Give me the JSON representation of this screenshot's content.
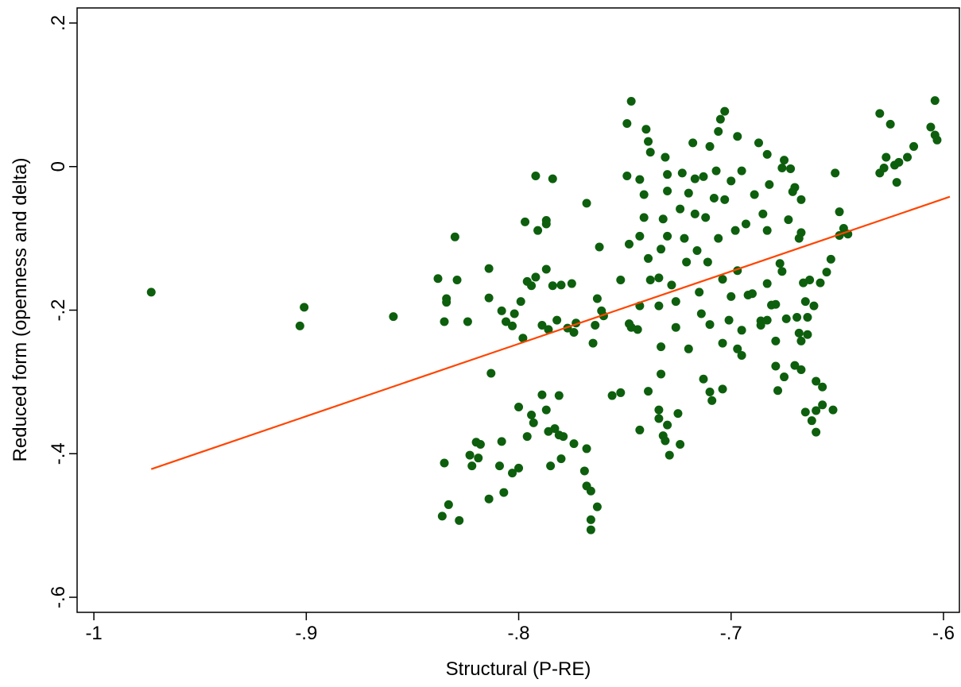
{
  "chart_data": {
    "type": "scatter",
    "x_label": "Structural (P-RE)",
    "y_label": "Reduced form (openness and delta)",
    "xlim": [
      -1.0079,
      -0.5925
    ],
    "ylim": [
      -0.621,
      0.221
    ],
    "xticks": [
      {
        "value": -1,
        "label": "-1"
      },
      {
        "value": -0.9,
        "label": "-.9"
      },
      {
        "value": -0.8,
        "label": "-.8"
      },
      {
        "value": -0.7,
        "label": "-.7"
      },
      {
        "value": -0.6,
        "label": "-.6"
      }
    ],
    "yticks": [
      {
        "value": -0.6,
        "label": "-.6"
      },
      {
        "value": -0.4,
        "label": "-.4"
      },
      {
        "value": -0.2,
        "label": "-.2"
      },
      0,
      {
        "value": 0.2,
        "label": ".2"
      }
    ],
    "grid": false,
    "series": [
      {
        "color": "#0d5f0d",
        "x": [
          -0.973,
          -0.903,
          -0.901,
          -0.859,
          -0.838,
          -0.83,
          -0.829,
          -0.834,
          -0.834,
          -0.835,
          -0.835,
          -0.836,
          -0.833,
          -0.828,
          -0.824,
          -0.814,
          -0.814,
          -0.813,
          -0.814,
          -0.82,
          -0.822,
          -0.819,
          -0.823,
          -0.818,
          -0.808,
          -0.806,
          -0.803,
          -0.802,
          -0.799,
          -0.803,
          -0.807,
          -0.808,
          -0.809,
          -0.8,
          -0.798,
          -0.8,
          -0.797,
          -0.792,
          -0.791,
          -0.787,
          -0.787,
          -0.784,
          -0.796,
          -0.794,
          -0.792,
          -0.796,
          -0.794,
          -0.793,
          -0.789,
          -0.789,
          -0.787,
          -0.787,
          -0.786,
          -0.786,
          -0.785,
          -0.784,
          -0.783,
          -0.782,
          -0.781,
          -0.781,
          -0.78,
          -0.779,
          -0.78,
          -0.777,
          -0.775,
          -0.774,
          -0.773,
          -0.774,
          -0.768,
          -0.768,
          -0.769,
          -0.768,
          -0.766,
          -0.763,
          -0.766,
          -0.766,
          -0.764,
          -0.763,
          -0.762,
          -0.761,
          -0.76,
          -0.765,
          -0.756,
          -0.752,
          -0.752,
          -0.747,
          -0.748,
          -0.748,
          -0.747,
          -0.749,
          -0.749,
          -0.744,
          -0.743,
          -0.743,
          -0.741,
          -0.743,
          -0.743,
          -0.741,
          -0.74,
          -0.739,
          -0.738,
          -0.739,
          -0.739,
          -0.738,
          -0.734,
          -0.734,
          -0.734,
          -0.734,
          -0.733,
          -0.733,
          -0.733,
          -0.732,
          -0.732,
          -0.731,
          -0.731,
          -0.73,
          -0.73,
          -0.73,
          -0.729,
          -0.73,
          -0.728,
          -0.726,
          -0.726,
          -0.725,
          -0.724,
          -0.724,
          -0.723,
          -0.722,
          -0.721,
          -0.72,
          -0.72,
          -0.718,
          -0.717,
          -0.717,
          -0.716,
          -0.715,
          -0.714,
          -0.713,
          -0.713,
          -0.712,
          -0.711,
          -0.71,
          -0.71,
          -0.71,
          -0.709,
          -0.708,
          -0.707,
          -0.706,
          -0.705,
          -0.703,
          -0.706,
          -0.704,
          -0.704,
          -0.704,
          -0.703,
          -0.701,
          -0.7,
          -0.7,
          -0.698,
          -0.697,
          -0.697,
          -0.697,
          -0.695,
          -0.695,
          -0.695,
          -0.693,
          -0.692,
          -0.69,
          -0.689,
          -0.687,
          -0.686,
          -0.686,
          -0.685,
          -0.683,
          -0.683,
          -0.683,
          -0.683,
          -0.682,
          -0.681,
          -0.679,
          -0.679,
          -0.679,
          -0.678,
          -0.677,
          -0.676,
          -0.676,
          -0.675,
          -0.675,
          -0.674,
          -0.673,
          -0.672,
          -0.671,
          -0.67,
          -0.67,
          -0.669,
          -0.668,
          -0.668,
          -0.667,
          -0.667,
          -0.667,
          -0.667,
          -0.665,
          -0.666,
          -0.665,
          -0.664,
          -0.664,
          -0.663,
          -0.662,
          -0.661,
          -0.66,
          -0.66,
          -0.66,
          -0.658,
          -0.657,
          -0.657,
          -0.655,
          -0.653,
          -0.652,
          -0.651,
          -0.649,
          -0.649,
          -0.647,
          -0.645,
          -0.63,
          -0.63,
          -0.628,
          -0.627,
          -0.625,
          -0.623,
          -0.622,
          -0.621,
          -0.617,
          -0.614,
          -0.606,
          -0.604,
          -0.604,
          -0.603
        ],
        "values": [
          -0.175,
          -0.222,
          -0.196,
          -0.209,
          -0.156,
          -0.098,
          -0.158,
          -0.184,
          -0.189,
          -0.216,
          -0.413,
          -0.487,
          -0.471,
          -0.493,
          -0.216,
          -0.142,
          -0.183,
          -0.288,
          -0.463,
          -0.384,
          -0.417,
          -0.406,
          -0.402,
          -0.387,
          -0.201,
          -0.216,
          -0.222,
          -0.205,
          -0.188,
          -0.427,
          -0.454,
          -0.383,
          -0.417,
          -0.335,
          -0.239,
          -0.42,
          -0.077,
          -0.013,
          -0.089,
          -0.075,
          -0.08,
          -0.017,
          -0.16,
          -0.166,
          -0.154,
          -0.376,
          -0.346,
          -0.357,
          -0.318,
          -0.221,
          -0.339,
          -0.143,
          -0.369,
          -0.227,
          -0.417,
          -0.166,
          -0.365,
          -0.214,
          -0.319,
          -0.374,
          -0.407,
          -0.376,
          -0.165,
          -0.225,
          -0.163,
          -0.231,
          -0.218,
          -0.386,
          -0.393,
          -0.051,
          -0.424,
          -0.445,
          -0.452,
          -0.474,
          -0.492,
          -0.506,
          -0.221,
          -0.184,
          -0.112,
          -0.201,
          -0.208,
          -0.246,
          -0.319,
          -0.315,
          -0.158,
          -0.224,
          -0.108,
          -0.219,
          0.091,
          0.06,
          -0.013,
          -0.227,
          -0.097,
          -0.018,
          -0.039,
          -0.367,
          -0.194,
          -0.071,
          0.052,
          0.035,
          0.02,
          -0.128,
          -0.313,
          -0.158,
          -0.194,
          -0.339,
          -0.351,
          -0.155,
          -0.115,
          -0.251,
          -0.289,
          -0.375,
          -0.073,
          0.013,
          -0.382,
          -0.097,
          -0.034,
          -0.36,
          -0.402,
          -0.011,
          -0.165,
          -0.188,
          -0.224,
          -0.344,
          -0.059,
          -0.387,
          -0.009,
          -0.1,
          -0.133,
          -0.037,
          -0.254,
          0.033,
          -0.017,
          -0.066,
          -0.117,
          -0.175,
          -0.205,
          -0.014,
          -0.296,
          -0.071,
          -0.133,
          -0.22,
          0.028,
          -0.314,
          -0.326,
          -0.044,
          -0.006,
          0.049,
          0.066,
          0.077,
          -0.1,
          -0.157,
          -0.31,
          -0.246,
          -0.046,
          -0.214,
          -0.02,
          -0.181,
          -0.089,
          0.042,
          -0.254,
          -0.145,
          -0.228,
          -0.263,
          -0.006,
          -0.08,
          -0.179,
          -0.177,
          -0.039,
          0.033,
          -0.215,
          -0.221,
          -0.066,
          -0.163,
          0.017,
          -0.214,
          -0.089,
          -0.025,
          -0.193,
          -0.243,
          -0.278,
          -0.192,
          -0.312,
          -0.135,
          -0.146,
          -0.002,
          -0.293,
          0.009,
          -0.212,
          -0.074,
          -0.003,
          -0.035,
          -0.277,
          -0.029,
          -0.21,
          -0.232,
          -0.1,
          -0.046,
          -0.283,
          -0.243,
          -0.092,
          -0.342,
          -0.162,
          -0.188,
          -0.234,
          -0.21,
          -0.158,
          -0.354,
          -0.194,
          -0.34,
          -0.299,
          -0.37,
          -0.162,
          -0.332,
          -0.307,
          -0.147,
          -0.129,
          -0.339,
          -0.009,
          -0.096,
          -0.063,
          -0.086,
          -0.094,
          0.074,
          -0.009,
          -0.002,
          0.013,
          0.059,
          0.002,
          -0.022,
          0.006,
          0.013,
          0.028,
          0.055,
          0.092,
          0.044,
          0.037
        ]
      }
    ],
    "fit": {
      "color": "#ff4500",
      "x": [
        -0.973,
        -0.597
      ],
      "values": [
        -0.4215,
        -0.042
      ]
    }
  }
}
